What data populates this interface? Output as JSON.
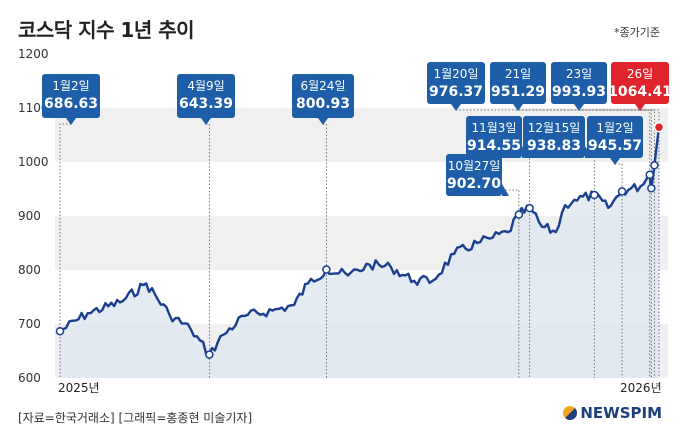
{
  "title": "코스닥 지수 1년 추이",
  "note": "*종가기준",
  "source": "[자료=한국거래소] [그래픽=홍종현 미술기자]",
  "logo": "NEWSPIM",
  "colors": {
    "line": "#1a3f8f",
    "callout": "#1e5ea8",
    "highlight": "#e0242c",
    "area": "#dfe7f1"
  },
  "chart_data": {
    "type": "area",
    "title": "코스닥 지수 1년 추이",
    "xlabel": "",
    "ylabel": "",
    "ylim": [
      600,
      1200
    ],
    "yticks": [
      600,
      700,
      800,
      900,
      1000,
      1100,
      1200
    ],
    "xticklabels": [
      {
        "x": "2025-01-02",
        "label": "2025년"
      },
      {
        "x": "2026-01-02",
        "label": "2026년"
      }
    ],
    "grid": "horizontal bands",
    "series": [
      {
        "points": [
          [
            "2025-01-02",
            686.63
          ],
          [
            "2025-01-20",
            720
          ],
          [
            "2025-02-10",
            740
          ],
          [
            "2025-02-27",
            775
          ],
          [
            "2025-03-14",
            718
          ],
          [
            "2025-03-28",
            690
          ],
          [
            "2025-04-09",
            643.39
          ],
          [
            "2025-04-18",
            680
          ],
          [
            "2025-05-02",
            715
          ],
          [
            "2025-05-20",
            725
          ],
          [
            "2025-06-03",
            735
          ],
          [
            "2025-06-12",
            775
          ],
          [
            "2025-06-24",
            800.93
          ],
          [
            "2025-07-08",
            790
          ],
          [
            "2025-07-22",
            810
          ],
          [
            "2025-08-05",
            805
          ],
          [
            "2025-08-20",
            780
          ],
          [
            "2025-09-01",
            780
          ],
          [
            "2025-09-15",
            830
          ],
          [
            "2025-09-30",
            850
          ],
          [
            "2025-10-10",
            860
          ],
          [
            "2025-10-20",
            870
          ],
          [
            "2025-10-27",
            902.7
          ],
          [
            "2025-11-03",
            914.55
          ],
          [
            "2025-11-11",
            880
          ],
          [
            "2025-11-20",
            870
          ],
          [
            "2025-11-26",
            920
          ],
          [
            "2025-12-02",
            930
          ],
          [
            "2025-12-15",
            938.83
          ],
          [
            "2025-12-24",
            915
          ],
          [
            "2026-01-02",
            945.57
          ],
          [
            "2026-01-14",
            955
          ],
          [
            "2026-01-20",
            976.37
          ],
          [
            "2026-01-21",
            951.29
          ],
          [
            "2026-01-23",
            993.93
          ],
          [
            "2026-01-26",
            1064.41
          ]
        ]
      }
    ],
    "annotations": [
      {
        "x": "2025-01-02",
        "date": "1월2일",
        "value": "686.63",
        "highlight": false
      },
      {
        "x": "2025-04-09",
        "date": "4월9일",
        "value": "643.39",
        "highlight": false
      },
      {
        "x": "2025-06-24",
        "date": "6월24일",
        "value": "800.93",
        "highlight": false
      },
      {
        "x": "2025-10-27",
        "date": "10월27일",
        "value": "902.70",
        "highlight": false
      },
      {
        "x": "2025-11-03",
        "date": "11월3일",
        "value": "914.55",
        "highlight": false
      },
      {
        "x": "2025-12-15",
        "date": "12월15일",
        "value": "938.83",
        "highlight": false
      },
      {
        "x": "2026-01-02",
        "date": "1월2일",
        "value": "945.57",
        "highlight": false
      },
      {
        "x": "2026-01-20",
        "date": "1월20일",
        "value": "976.37",
        "highlight": false
      },
      {
        "x": "2026-01-21",
        "date": "21일",
        "value": "951.29",
        "highlight": false
      },
      {
        "x": "2026-01-23",
        "date": "23일",
        "value": "993.93",
        "highlight": false
      },
      {
        "x": "2026-01-26",
        "date": "26일",
        "value": "1064.41",
        "highlight": true
      }
    ]
  }
}
